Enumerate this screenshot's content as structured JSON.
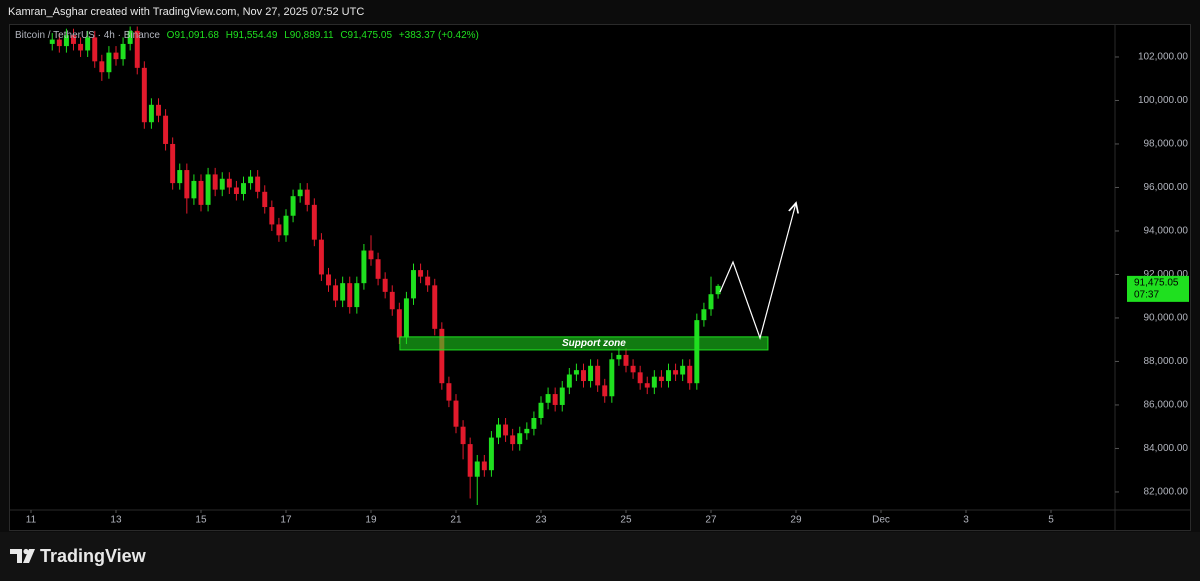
{
  "attribution": "Kamran_Asghar created with TradingView.com, Nov 27, 2025 07:52 UTC",
  "footer_logo": "TradingView",
  "chart_data": {
    "type": "candlestick",
    "legend": {
      "symbol": "Bitcoin / TetherUS · 4h · Binance",
      "open_text": "O91,091.68",
      "high_text": "H91,554.49",
      "low_text": "L90,889.11",
      "close_text": "C91,475.05",
      "change_text": "+383.37 (+0.42%)"
    },
    "up_color": "#1fe01f",
    "down_color": "#e21a2c",
    "x": [
      11.5,
      11.6667,
      11.8333,
      12,
      12.1667,
      12.3333,
      12.5,
      12.6667,
      12.8333,
      13,
      13.1667,
      13.3333,
      13.5,
      13.6667,
      13.8333,
      14,
      14.1667,
      14.3333,
      14.5,
      14.6667,
      14.8333,
      15,
      15.1667,
      15.3333,
      15.5,
      15.6667,
      15.8333,
      16,
      16.1667,
      16.3333,
      16.5,
      16.6667,
      16.8333,
      17,
      17.1667,
      17.3333,
      17.5,
      17.6667,
      17.8333,
      18,
      18.1667,
      18.3333,
      18.5,
      18.6667,
      18.8333,
      19,
      19.1667,
      19.3333,
      19.5,
      19.6667,
      19.8333,
      20,
      20.1667,
      20.3333,
      20.5,
      20.6667,
      20.8333,
      21,
      21.1667,
      21.3333,
      21.5,
      21.6667,
      21.8333,
      22,
      22.1667,
      22.3333,
      22.5,
      22.6667,
      22.8333,
      23,
      23.1667,
      23.3333,
      23.5,
      23.6667,
      23.8333,
      24,
      24.1667,
      24.3333,
      24.5,
      24.6667,
      24.8333,
      25,
      25.1667,
      25.3333,
      25.5,
      25.6667,
      25.8333,
      26,
      26.1667,
      26.3333,
      26.5,
      26.6667,
      26.8333,
      27,
      27.1667
    ],
    "open": [
      102600,
      102800,
      102500,
      103000,
      102600,
      102300,
      102900,
      101800,
      101300,
      102200,
      101900,
      102600,
      103200,
      101500,
      99000,
      99800,
      99300,
      98000,
      96200,
      96800,
      95500,
      96300,
      95200,
      96600,
      95900,
      96400,
      96000,
      95700,
      96200,
      96500,
      95800,
      95100,
      94300,
      93800,
      94700,
      95600,
      95900,
      95200,
      93600,
      92000,
      91500,
      90800,
      91600,
      90500,
      91600,
      93100,
      92700,
      91800,
      91200,
      90400,
      89100,
      90900,
      92200,
      91900,
      91500,
      89500,
      87000,
      86200,
      85000,
      84200,
      82700,
      83400,
      83000,
      84500,
      85100,
      84600,
      84200,
      84700,
      84900,
      85400,
      86100,
      86500,
      86000,
      86800,
      87400,
      87600,
      87100,
      87800,
      86900,
      86400,
      88100,
      88300,
      87800,
      87500,
      87000,
      86800,
      87300,
      87100,
      87600,
      87400,
      87800,
      87000,
      89900,
      90400,
      91091.68
    ],
    "high": [
      103100,
      103100,
      103300,
      103300,
      102900,
      103200,
      103200,
      102100,
      102500,
      102500,
      102900,
      103400,
      103400,
      101800,
      100100,
      100100,
      99600,
      98300,
      97100,
      97100,
      96600,
      96600,
      96900,
      96900,
      96700,
      96700,
      96300,
      96500,
      96800,
      96800,
      96100,
      95400,
      94600,
      95000,
      95900,
      96200,
      96200,
      95500,
      93900,
      92300,
      91800,
      91900,
      91900,
      91900,
      93400,
      93800,
      93000,
      92100,
      91500,
      90700,
      91200,
      92500,
      92500,
      92200,
      91800,
      89800,
      87300,
      86500,
      85300,
      84500,
      83700,
      83700,
      84800,
      85400,
      85400,
      84900,
      85000,
      85200,
      85700,
      86400,
      86800,
      86800,
      87100,
      87700,
      87900,
      87900,
      88100,
      88100,
      87200,
      88400,
      88600,
      88600,
      88100,
      87800,
      87300,
      87600,
      87600,
      87900,
      87900,
      88100,
      88100,
      90200,
      90700,
      91900,
      91554.49
    ],
    "low": [
      102300,
      102200,
      102200,
      102300,
      102000,
      102000,
      101500,
      100900,
      101000,
      101600,
      101600,
      102300,
      101200,
      98700,
      98700,
      99000,
      97700,
      95900,
      95900,
      94800,
      95200,
      94900,
      94900,
      95600,
      95600,
      95700,
      95400,
      95400,
      95900,
      95500,
      94800,
      94000,
      93500,
      93500,
      94400,
      95300,
      94900,
      93300,
      91700,
      91200,
      90500,
      90500,
      90200,
      90200,
      91300,
      92400,
      91500,
      90900,
      90100,
      88800,
      88800,
      90600,
      91600,
      91200,
      89200,
      86700,
      85900,
      84700,
      83500,
      81700,
      81400,
      82700,
      82700,
      84200,
      84300,
      83900,
      83900,
      84400,
      84600,
      85100,
      85800,
      85700,
      85700,
      86500,
      87100,
      86800,
      86800,
      86600,
      86100,
      86100,
      87800,
      87500,
      87200,
      86700,
      86500,
      86500,
      86800,
      86800,
      87100,
      87100,
      86700,
      86700,
      89600,
      90100,
      90889.11
    ],
    "close": [
      102800,
      102500,
      103000,
      102600,
      102300,
      102900,
      101800,
      101300,
      102200,
      101900,
      102600,
      103200,
      101500,
      99000,
      99800,
      99300,
      98000,
      96200,
      96800,
      95500,
      96300,
      95200,
      96600,
      95900,
      96400,
      96000,
      95700,
      96200,
      96500,
      95800,
      95100,
      94300,
      93800,
      94700,
      95600,
      95900,
      95200,
      93600,
      92000,
      91500,
      90800,
      91600,
      90500,
      91600,
      93100,
      92700,
      91800,
      91200,
      90400,
      89100,
      90900,
      92200,
      91900,
      91500,
      89500,
      87000,
      86200,
      85000,
      84200,
      82700,
      83400,
      83000,
      84500,
      85100,
      84600,
      84200,
      84700,
      84900,
      85400,
      86100,
      86500,
      86000,
      86800,
      87400,
      87600,
      87100,
      87800,
      86900,
      86400,
      88100,
      88300,
      87800,
      87500,
      87000,
      86800,
      87300,
      87100,
      87600,
      87400,
      87800,
      87000,
      89900,
      90400,
      91091.68,
      91475.05
    ],
    "xlim": [
      10.506,
      36.506
    ],
    "xticks": [
      11,
      13,
      15,
      17,
      19,
      21,
      23,
      25,
      27,
      29,
      {
        "value": 31,
        "label": "Dec"
      },
      {
        "value": 33,
        "label": "3"
      },
      {
        "value": 35,
        "label": "5"
      }
    ],
    "ylim": [
      81170,
      103470
    ],
    "yticks": [
      {
        "value": 82000,
        "label": "82,000.00"
      },
      {
        "value": 84000,
        "label": "84,000.00"
      },
      {
        "value": 86000,
        "label": "86,000.00"
      },
      {
        "value": 88000,
        "label": "88,000.00"
      },
      {
        "value": 90000,
        "label": "90,000.00"
      },
      {
        "value": 92000,
        "label": "92,000.00"
      },
      {
        "value": 94000,
        "label": "94,000.00"
      },
      {
        "value": 96000,
        "label": "96,000.00"
      },
      {
        "value": 98000,
        "label": "98,000.00"
      },
      {
        "value": 100000,
        "label": "100,000.00"
      },
      {
        "value": 102000,
        "label": "102,000.00"
      }
    ],
    "price_label": {
      "value": 91475.05,
      "label": "91,475.05",
      "countdown": "07:37"
    },
    "support_zone": {
      "label": "Support zone",
      "x": [
        19.68,
        28.34
      ],
      "y": [
        88530,
        89130
      ]
    }
  }
}
